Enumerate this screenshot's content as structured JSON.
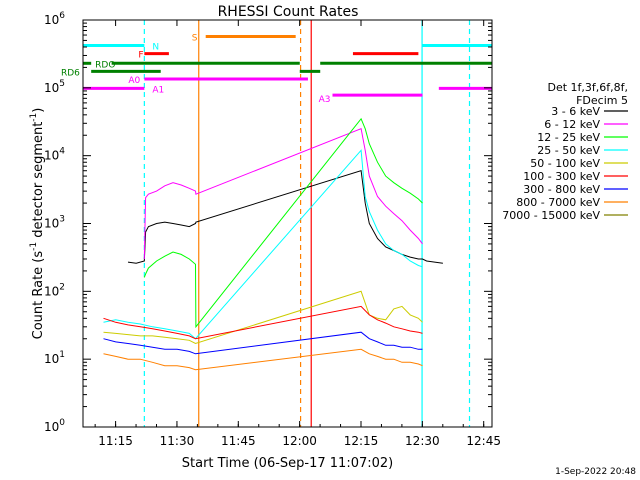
{
  "chart_data": {
    "type": "line",
    "title": "RHESSI Count Rates",
    "xlabel": "Start Time (06-Sep-17 11:07:02)",
    "ylabel_main": "Count Rate (s",
    "ylabel_sup1": "-1",
    "ylabel_mid": " detector segment",
    "ylabel_sup2": "-1",
    "ylabel_end": ")",
    "x_unit": "minutes since 11:07:02",
    "xlim": [
      0,
      100
    ],
    "y_scale": "log",
    "ylim": [
      1,
      1000000
    ],
    "x_ticks": [
      {
        "label": "11:15",
        "t": 7.97
      },
      {
        "label": "11:30",
        "t": 22.97
      },
      {
        "label": "11:45",
        "t": 37.97
      },
      {
        "label": "12:00",
        "t": 52.97
      },
      {
        "label": "12:15",
        "t": 67.97
      },
      {
        "label": "12:30",
        "t": 82.97
      },
      {
        "label": "12:45",
        "t": 97.97
      }
    ],
    "y_ticks": [
      {
        "base": "10",
        "exp": "0",
        "v": 1
      },
      {
        "base": "10",
        "exp": "1",
        "v": 10
      },
      {
        "base": "10",
        "exp": "2",
        "v": 100
      },
      {
        "base": "10",
        "exp": "3",
        "v": 1000
      },
      {
        "base": "10",
        "exp": "4",
        "v": 10000
      },
      {
        "base": "10",
        "exp": "5",
        "v": 100000
      },
      {
        "base": "10",
        "exp": "6",
        "v": 1000000
      }
    ],
    "legend_header": [
      "Det 1f,3f,6f,8f,",
      "FDecim 5"
    ],
    "legend_position": "right",
    "series": [
      {
        "name": "3 - 6 keV",
        "color": "#000000",
        "x": [
          11,
          13,
          15,
          15.3,
          16,
          18,
          20,
          22,
          24,
          26,
          27.5,
          27.6,
          68,
          69,
          70,
          72,
          74,
          76,
          78,
          80,
          82,
          83,
          84,
          86,
          88
        ],
        "y": [
          270,
          260,
          280,
          750,
          900,
          1000,
          1050,
          1000,
          950,
          900,
          1000,
          1050,
          6000,
          2000,
          1000,
          600,
          450,
          400,
          350,
          320,
          300,
          300,
          280,
          270,
          260
        ]
      },
      {
        "name": "6 - 12 keV",
        "color": "#ff00ff",
        "x": [
          15,
          15.3,
          16,
          18,
          20,
          22,
          24,
          26,
          27.5,
          27.6,
          68,
          69,
          70,
          72,
          74,
          76,
          78,
          80,
          82,
          83
        ],
        "y": [
          300,
          2400,
          2700,
          3000,
          3600,
          4000,
          3700,
          3300,
          3000,
          2700,
          25000,
          12000,
          5000,
          2500,
          1800,
          1400,
          1100,
          800,
          600,
          500
        ]
      },
      {
        "name": "12 - 25 keV",
        "color": "#00ff00",
        "x": [
          15,
          15.3,
          16,
          18,
          20,
          22,
          24,
          26,
          27.5,
          27.6,
          68,
          69,
          70,
          72,
          74,
          76,
          78,
          80,
          82,
          83
        ],
        "y": [
          160,
          180,
          220,
          280,
          330,
          380,
          350,
          300,
          250,
          30,
          35000,
          25000,
          15000,
          8000,
          5000,
          4000,
          3300,
          2800,
          2300,
          2000
        ]
      },
      {
        "name": "25 - 50 keV",
        "color": "#00ffff",
        "x": [
          5,
          8,
          11,
          14,
          17,
          20,
          23,
          26,
          27.5,
          68,
          69,
          70,
          72,
          74,
          76,
          78,
          80,
          82,
          83
        ],
        "y": [
          35,
          38,
          35,
          33,
          30,
          28,
          26,
          24,
          20,
          12000,
          2500,
          1500,
          800,
          500,
          400,
          350,
          280,
          240,
          230
        ]
      },
      {
        "name": "50 - 100 keV",
        "color": "#cccc00",
        "x": [
          5,
          8,
          11,
          14,
          17,
          20,
          23,
          26,
          27.5,
          68,
          70,
          72,
          74,
          76,
          78,
          80,
          82,
          83
        ],
        "y": [
          25,
          24,
          23,
          22,
          22,
          21,
          20,
          19,
          17,
          100,
          45,
          40,
          38,
          55,
          60,
          45,
          40,
          35
        ]
      },
      {
        "name": "100 - 300 keV",
        "color": "#ff0000",
        "x": [
          5,
          8,
          11,
          14,
          17,
          20,
          23,
          26,
          27.5,
          68,
          70,
          72,
          74,
          76,
          78,
          80,
          82,
          83
        ],
        "y": [
          40,
          35,
          32,
          30,
          28,
          26,
          24,
          22,
          20,
          60,
          45,
          38,
          34,
          30,
          28,
          26,
          25,
          24
        ]
      },
      {
        "name": "300 - 800 keV",
        "color": "#0000ff",
        "x": [
          5,
          8,
          11,
          14,
          17,
          20,
          23,
          26,
          27.5,
          68,
          70,
          72,
          74,
          76,
          78,
          80,
          82,
          83
        ],
        "y": [
          20,
          18,
          17,
          16,
          15,
          14,
          14,
          13,
          12,
          25,
          20,
          18,
          16,
          16,
          15,
          15,
          14,
          14
        ]
      },
      {
        "name": "800 - 7000 keV",
        "color": "#ff8000",
        "x": [
          5,
          8,
          11,
          14,
          17,
          20,
          23,
          26,
          27.5,
          68,
          70,
          72,
          74,
          76,
          78,
          80,
          82,
          83
        ],
        "y": [
          12,
          11,
          10,
          10,
          9,
          8,
          8,
          7.5,
          7,
          14,
          12,
          11,
          10,
          10,
          9,
          9,
          8.5,
          8
        ]
      },
      {
        "name": "7000 - 15000 keV",
        "color": "#808000",
        "x": [],
        "y": []
      }
    ],
    "attenuator_panel": {
      "labels": {
        "N": "N",
        "F": "F",
        "S": "S",
        "RDO": "RDO",
        "RD6": "RD6",
        "A0": "A0",
        "A1": "A1",
        "A3": "A3"
      },
      "segments": [
        {
          "flag": "N",
          "color": "#00ffff",
          "y": 420000,
          "x0": 0,
          "x1": 15
        },
        {
          "flag": "N",
          "color": "#00ffff",
          "y": 420000,
          "x0": 83,
          "x1": 100
        },
        {
          "flag": "F",
          "color": "#ff0000",
          "y": 320000,
          "x0": 15,
          "x1": 21
        },
        {
          "flag": "F",
          "color": "#ff0000",
          "y": 320000,
          "x0": 66,
          "x1": 82
        },
        {
          "flag": "S",
          "color": "#ff8000",
          "y": 570000,
          "x0": 30,
          "x1": 52
        },
        {
          "flag": "RDO",
          "color": "#008000",
          "y": 230000,
          "x0": 0,
          "x1": 2
        },
        {
          "flag": "RDO",
          "color": "#008000",
          "y": 230000,
          "x0": 7,
          "x1": 53
        },
        {
          "flag": "RDO",
          "color": "#008000",
          "y": 230000,
          "x0": 58,
          "x1": 100
        },
        {
          "flag": "RD6",
          "color": "#008000",
          "y": 175000,
          "x0": 2,
          "x1": 19
        },
        {
          "flag": "RD6",
          "color": "#008000",
          "y": 175000,
          "x0": 53,
          "x1": 58
        },
        {
          "flag": "A0",
          "color": "#ff00ff",
          "y": 135000,
          "x0": 15,
          "x1": 55
        },
        {
          "flag": "A1",
          "color": "#ff00ff",
          "y": 98000,
          "x0": 0,
          "x1": 15
        },
        {
          "flag": "A1",
          "color": "#ff00ff",
          "y": 98000,
          "x0": 87,
          "x1": 100
        },
        {
          "flag": "A3",
          "color": "#ff00ff",
          "y": 78000,
          "x0": 61,
          "x1": 83
        }
      ]
    },
    "vertical_markers": [
      {
        "t": 15.0,
        "color": "#00ffff",
        "style": "dashed"
      },
      {
        "t": 28.3,
        "color": "#ff8000",
        "style": "solid"
      },
      {
        "t": 53.2,
        "color": "#ff8000",
        "style": "dashed"
      },
      {
        "t": 55.8,
        "color": "#ff0000",
        "style": "solid"
      },
      {
        "t": 82.9,
        "color": "#00ffff",
        "style": "solid"
      },
      {
        "t": 94.5,
        "color": "#00ffff",
        "style": "dashed"
      }
    ]
  },
  "footer": {
    "timestamp": "1-Sep-2022 20:48"
  }
}
